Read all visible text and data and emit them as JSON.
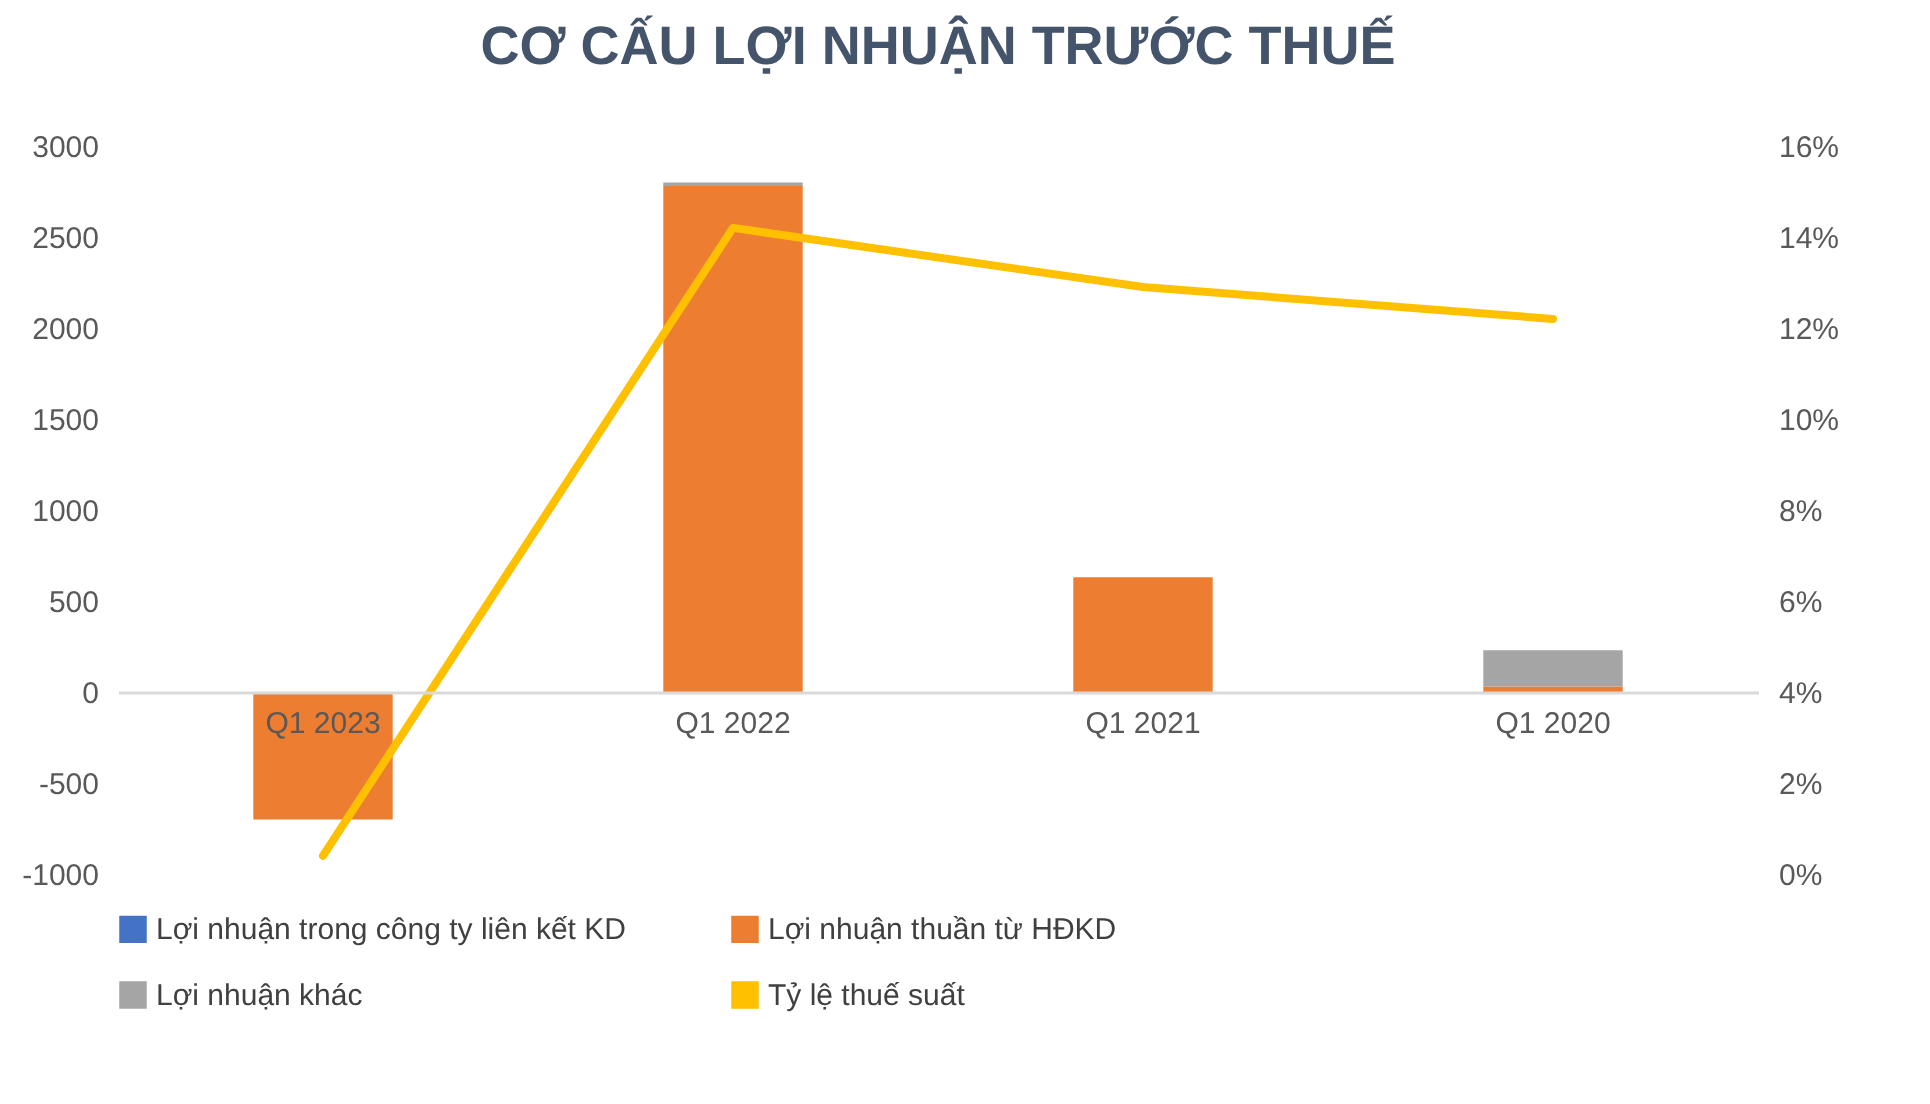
{
  "chart_data": {
    "type": "bar",
    "title": "CƠ CẤU LỢI NHUẬN TRƯỚC THUẾ",
    "categories": [
      "Q1 2023",
      "Q1 2022",
      "Q1 2021",
      "Q1 2020"
    ],
    "stacked": true,
    "legend": "bottom",
    "series": [
      {
        "name": "Lợi nhuận trong công ty liên kết KD",
        "color": "#4472c4",
        "values": [
          0,
          0,
          0,
          0
        ]
      },
      {
        "name": "Lợi nhuận thuần từ HĐKD",
        "color": "#ed7d31",
        "values": [
          -700,
          2780,
          630,
          30
        ]
      },
      {
        "name": "Lợi nhuận khác",
        "color": "#a5a5a5",
        "values": [
          0,
          20,
          0,
          200
        ]
      },
      {
        "name": "Tỷ lệ thuế suất",
        "color": "#ffc000",
        "type": "line",
        "axis": "y2",
        "values": [
          0.4,
          14.2,
          12.9,
          12.2
        ]
      }
    ],
    "ylim": [
      -1000,
      3000
    ],
    "yticks": [
      -1000,
      -500,
      0,
      500,
      1000,
      1500,
      2000,
      2500,
      3000
    ],
    "y2lim": [
      0,
      16
    ],
    "y2ticks": [
      {
        "value": 0,
        "label": "0%"
      },
      {
        "value": 2,
        "label": "2%"
      },
      {
        "value": 4,
        "label": "4%"
      },
      {
        "value": 6,
        "label": "6%"
      },
      {
        "value": 8,
        "label": "8%"
      },
      {
        "value": 10,
        "label": "10%"
      },
      {
        "value": 12,
        "label": "12%"
      },
      {
        "value": 14,
        "label": "14%"
      },
      {
        "value": 16,
        "label": "16%"
      }
    ]
  }
}
